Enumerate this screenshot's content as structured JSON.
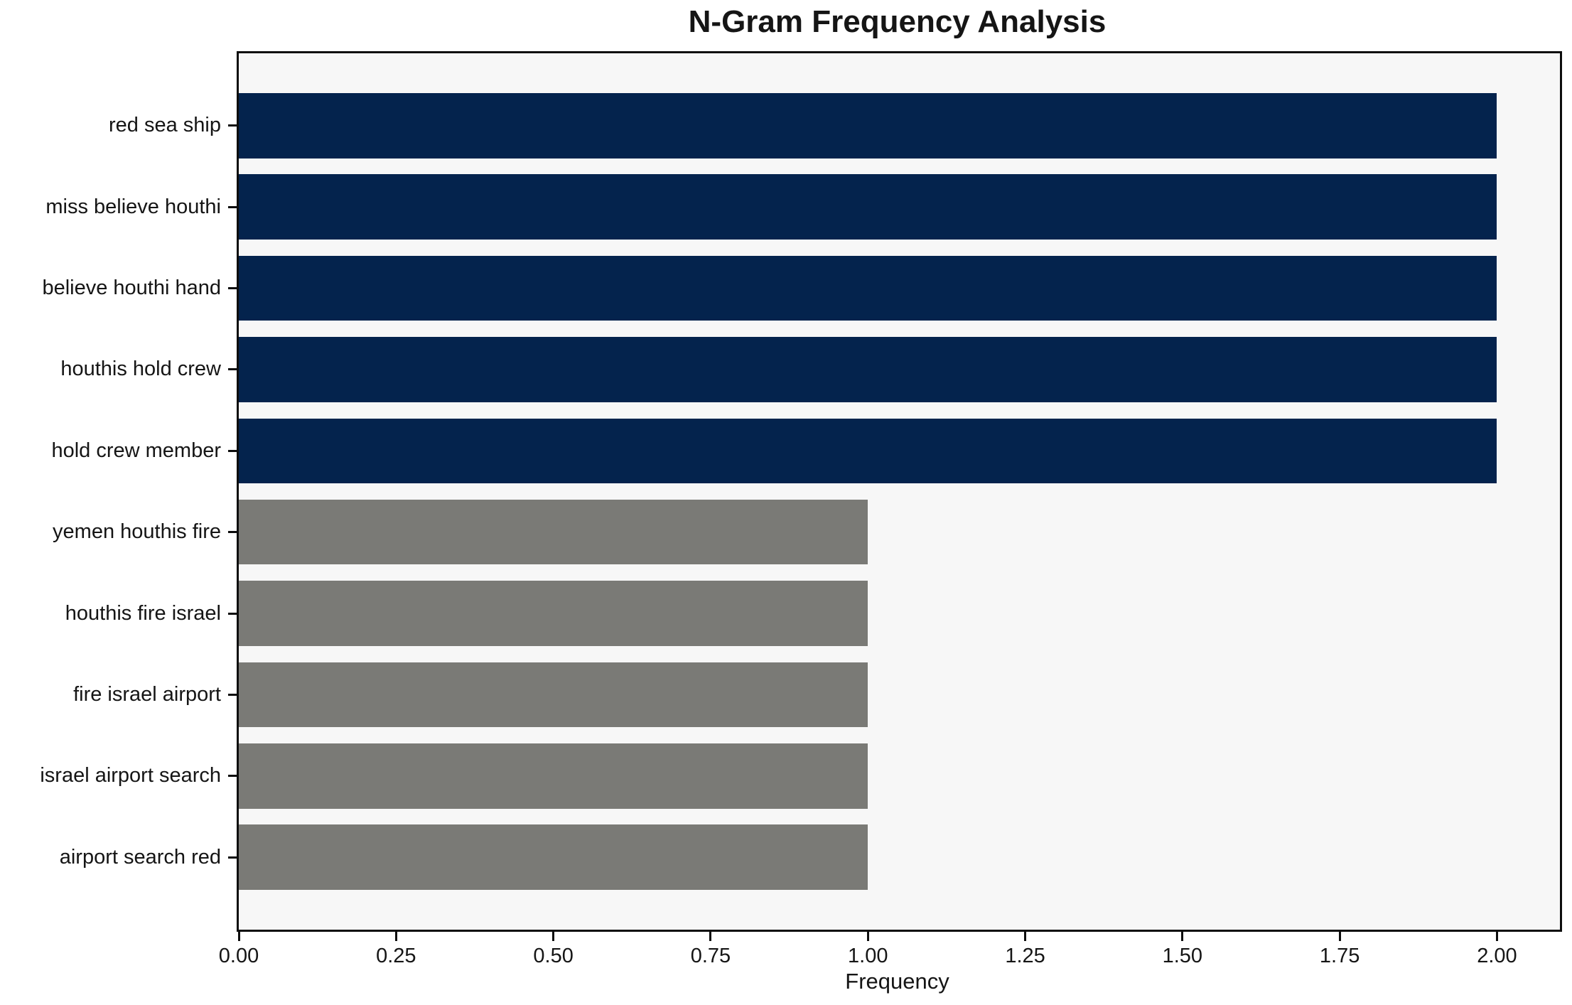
{
  "chart_data": {
    "type": "bar",
    "orientation": "horizontal",
    "title": "N-Gram Frequency Analysis",
    "xlabel": "Frequency",
    "ylabel": "",
    "categories": [
      "red sea ship",
      "miss believe houthi",
      "believe houthi hand",
      "houthis hold crew",
      "hold crew member",
      "yemen houthis fire",
      "houthis fire israel",
      "fire israel airport",
      "israel airport search",
      "airport search red"
    ],
    "values": [
      2,
      2,
      2,
      2,
      2,
      1,
      1,
      1,
      1,
      1
    ],
    "bar_colors": [
      "#04234d",
      "#04234d",
      "#04234d",
      "#04234d",
      "#04234d",
      "#7a7a76",
      "#7a7a76",
      "#7a7a76",
      "#7a7a76",
      "#7a7a76"
    ],
    "xlim": [
      0,
      2.1
    ],
    "xticks": [
      0,
      0.25,
      0.5,
      0.75,
      1.0,
      1.25,
      1.5,
      1.75,
      2.0
    ],
    "xtick_labels": [
      "0.00",
      "0.25",
      "0.50",
      "0.75",
      "1.00",
      "1.25",
      "1.50",
      "1.75",
      "2.00"
    ],
    "grid": "off",
    "legend": "none",
    "colors": {
      "high_frequency_bar": "#04234d",
      "low_frequency_bar": "#7a7a76",
      "plot_background": "#f7f7f7",
      "figure_background": "#ffffff",
      "spine": "#0d0d0d",
      "text": "#151515"
    }
  }
}
